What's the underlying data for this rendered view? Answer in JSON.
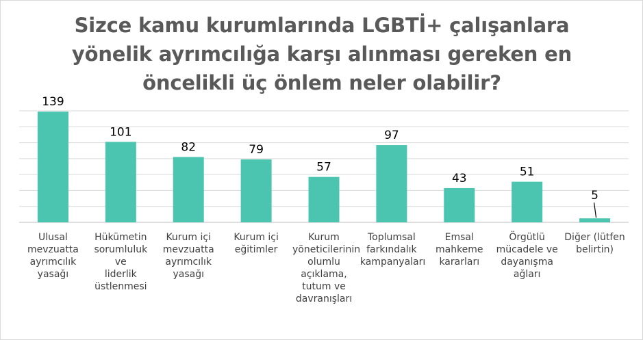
{
  "title_lines": [
    "Sizce kamu kurumlarında LGBTİ+ çalışanlara",
    "yönelik ayrımcılığa karşı alınması gereken en",
    "öncelikli üç önlem neler olabilir?"
  ],
  "colors": {
    "bar": "#4bc5b0",
    "grid": "#d9d9d9",
    "axis": "#bfbfbf",
    "text": "#404040",
    "title": "#595959"
  },
  "chart_data": {
    "type": "bar",
    "title": "Sizce kamu kurumlarında LGBTİ+ çalışanlara yönelik ayrımcılığa karşı alınması gereken en öncelikli üç önlem neler olabilir?",
    "categories": [
      [
        "Ulusal",
        "mevzuatta",
        "ayrımcılık",
        "yasağı"
      ],
      [
        "Hükümetin",
        "sorumluluk ve",
        "liderlik",
        "üstlenmesi"
      ],
      [
        "Kurum içi",
        "mevzuatta",
        "ayrımcılık",
        "yasağı"
      ],
      [
        "Kurum içi",
        "eğitimler"
      ],
      [
        "Kurum",
        "yöneticilerinin",
        "olumlu",
        "açıklama,",
        "tutum ve",
        "davranışları"
      ],
      [
        "Toplumsal",
        "farkındalık",
        "kampanyaları"
      ],
      [
        "Emsal",
        "mahkeme",
        "kararları"
      ],
      [
        "Örgütlü",
        "mücadele ve",
        "dayanışma",
        "ağları"
      ],
      [
        "Diğer (lütfen",
        "belirtin)"
      ]
    ],
    "values": [
      139,
      101,
      82,
      79,
      57,
      97,
      43,
      51,
      5
    ],
    "ylim": [
      0,
      140
    ],
    "grid": true,
    "legend": "none"
  }
}
